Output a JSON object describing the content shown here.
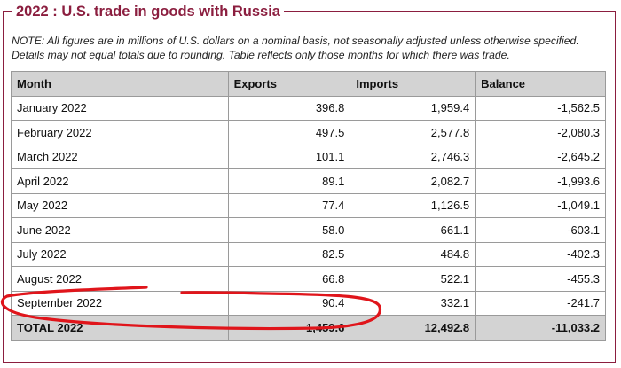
{
  "title": "2022 : U.S. trade in goods with Russia",
  "note": "NOTE: All figures are in millions of U.S. dollars on a nominal basis, not seasonally adjusted unless otherwise specified. Details may not equal totals due to rounding. Table reflects only those months for which there was trade.",
  "table": {
    "headers": [
      "Month",
      "Exports",
      "Imports",
      "Balance"
    ],
    "rows": [
      {
        "month": "January 2022",
        "exports": "396.8",
        "imports": "1,959.4",
        "balance": "-1,562.5"
      },
      {
        "month": "February 2022",
        "exports": "497.5",
        "imports": "2,577.8",
        "balance": "-2,080.3"
      },
      {
        "month": "March 2022",
        "exports": "101.1",
        "imports": "2,746.3",
        "balance": "-2,645.2"
      },
      {
        "month": "April 2022",
        "exports": "89.1",
        "imports": "2,082.7",
        "balance": "-1,993.6"
      },
      {
        "month": "May 2022",
        "exports": "77.4",
        "imports": "1,126.5",
        "balance": "-1,049.1"
      },
      {
        "month": "June 2022",
        "exports": "58.0",
        "imports": "661.1",
        "balance": "-603.1"
      },
      {
        "month": "July 2022",
        "exports": "82.5",
        "imports": "484.8",
        "balance": "-402.3"
      },
      {
        "month": "August 2022",
        "exports": "66.8",
        "imports": "522.1",
        "balance": "-455.3"
      },
      {
        "month": "September 2022",
        "exports": "90.4",
        "imports": "332.1",
        "balance": "-241.7"
      }
    ],
    "total": {
      "month": "TOTAL 2022",
      "exports": "1,459.6",
      "imports": "12,492.8",
      "balance": "-11,033.2"
    }
  },
  "colors": {
    "accent": "#8b1e3f",
    "header_bg": "#d3d3d3",
    "annotation": "#e0151b"
  }
}
